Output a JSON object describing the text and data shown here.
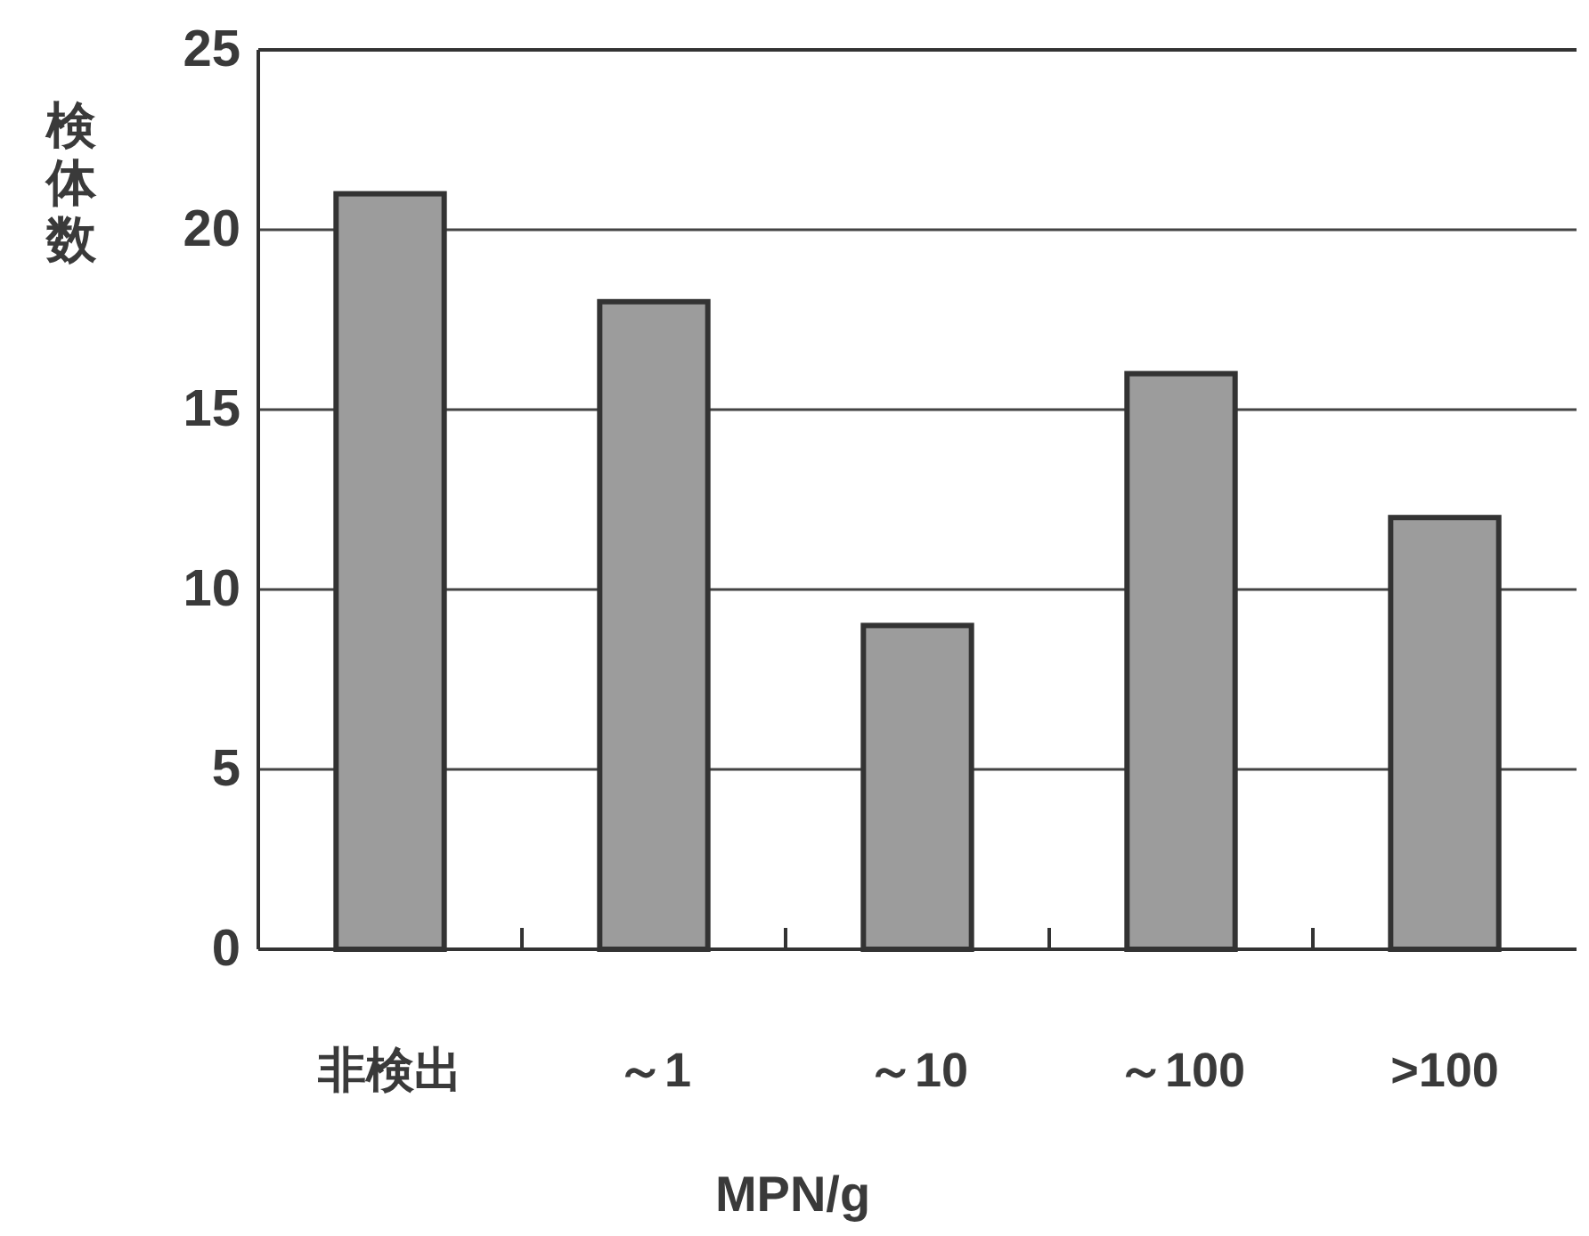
{
  "chart_data": {
    "type": "bar",
    "categories": [
      "非検出",
      "～1",
      "～10",
      "～100",
      ">100"
    ],
    "values": [
      21,
      18,
      9,
      16,
      12
    ],
    "color": "#9c9c9c",
    "ylim": [
      0,
      25
    ],
    "yticks": [
      0,
      5,
      10,
      15,
      20,
      25
    ],
    "grid": "y",
    "xlabel": "MPN/g",
    "ylabel": "検体数"
  }
}
